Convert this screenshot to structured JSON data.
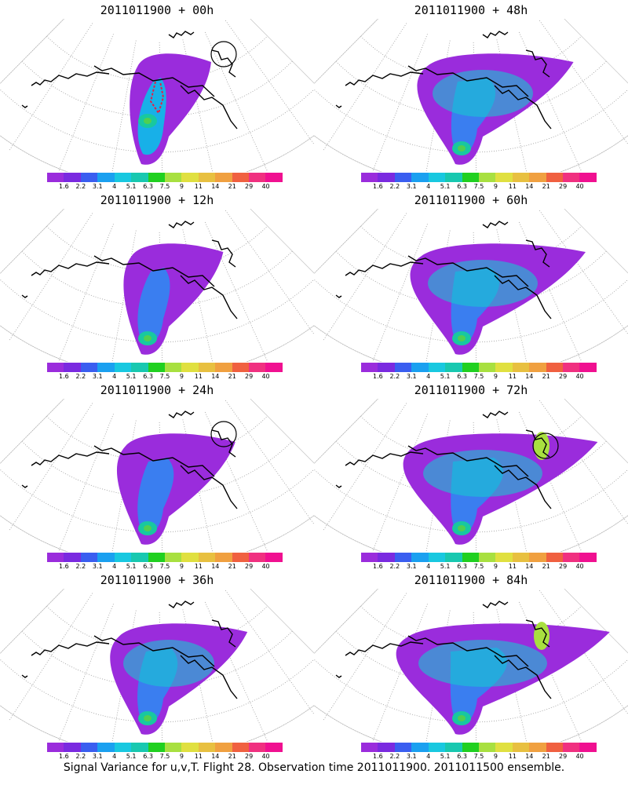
{
  "panels": [
    {
      "title": "2011011900 + 00h"
    },
    {
      "title": "2011011900 + 48h"
    },
    {
      "title": "2011011900 + 12h"
    },
    {
      "title": "2011011900 + 60h"
    },
    {
      "title": "2011011900 + 24h"
    },
    {
      "title": "2011011900 + 72h"
    },
    {
      "title": "2011011900 + 36h"
    },
    {
      "title": "2011011900 + 84h"
    }
  ],
  "colorbar": {
    "labels": [
      "1.6",
      "2.2",
      "3.1",
      "4",
      "5.1",
      "6.3",
      "7.5",
      "9",
      "11",
      "14",
      "21",
      "29",
      "40"
    ],
    "colors": [
      "#9a2cdc",
      "#7a2ae0",
      "#3a5ef0",
      "#1aa0f0",
      "#18c8e0",
      "#18c8b0",
      "#20d020",
      "#a8e040",
      "#e0e040",
      "#e8c040",
      "#f0a040",
      "#f06040",
      "#f03080",
      "#f01090"
    ]
  },
  "caption": "Signal Variance for u,v,T. Flight 28. Observation time 2011011900. 2011011500 ensemble."
}
